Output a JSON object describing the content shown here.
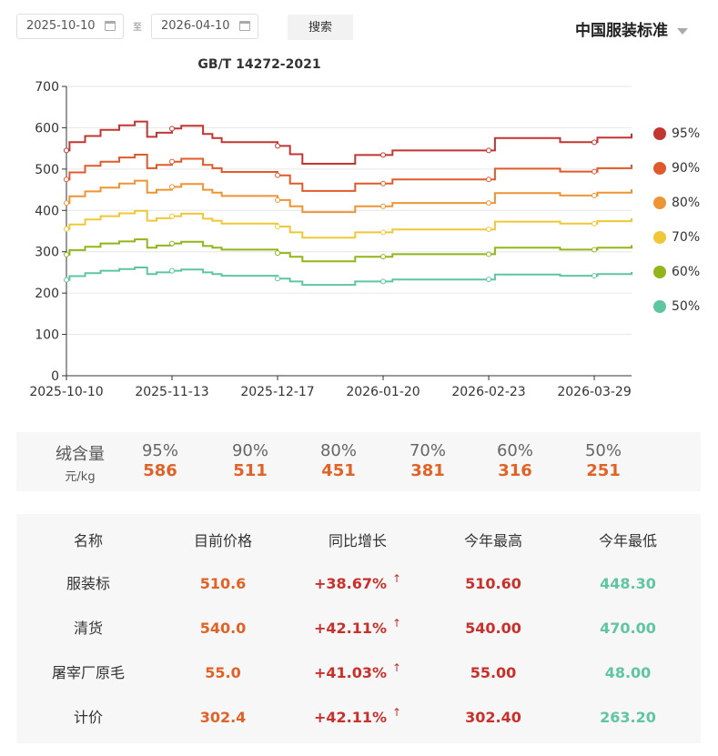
{
  "filters": {
    "start_date": "2025-10-10",
    "separator": "至",
    "end_date": "2026-04-10",
    "search_label": "搜索",
    "standard": "中国服装标准"
  },
  "chart_data": {
    "type": "line",
    "title": "GB/T 14272-2021",
    "xlabel": "",
    "ylabel": "",
    "ylim": [
      0,
      700
    ],
    "yticks": [
      0,
      100,
      200,
      300,
      400,
      500,
      600,
      700
    ],
    "xticks": [
      "2025-10-10",
      "2025-11-13",
      "2025-12-17",
      "2026-01-20",
      "2026-02-23",
      "2026-03-29"
    ],
    "x_range": [
      "2025-10-10",
      "2026-04-10"
    ],
    "step": true,
    "grid": true,
    "legend_position": "right",
    "series": [
      {
        "name": "95%",
        "color": "#c23531",
        "points": [
          [
            "2025-10-10",
            545
          ],
          [
            "2025-10-11",
            565
          ],
          [
            "2025-10-16",
            580
          ],
          [
            "2025-10-21",
            595
          ],
          [
            "2025-10-27",
            606
          ],
          [
            "2025-11-01",
            615
          ],
          [
            "2025-11-05",
            578
          ],
          [
            "2025-11-08",
            588
          ],
          [
            "2025-11-13",
            598
          ],
          [
            "2025-11-16",
            605
          ],
          [
            "2025-11-23",
            585
          ],
          [
            "2025-11-26",
            575
          ],
          [
            "2025-11-29",
            565
          ],
          [
            "2025-12-17",
            556
          ],
          [
            "2025-12-21",
            536
          ],
          [
            "2025-12-25",
            513
          ],
          [
            "2026-01-11",
            534
          ],
          [
            "2026-01-23",
            545
          ],
          [
            "2026-02-25",
            575
          ],
          [
            "2026-03-18",
            565
          ],
          [
            "2026-03-30",
            576
          ],
          [
            "2026-04-10",
            586
          ]
        ]
      },
      {
        "name": "90%",
        "color": "#e05a2b",
        "points": [
          [
            "2025-10-10",
            475
          ],
          [
            "2025-10-11",
            492
          ],
          [
            "2025-10-16",
            508
          ],
          [
            "2025-10-21",
            518
          ],
          [
            "2025-10-27",
            528
          ],
          [
            "2025-11-01",
            535
          ],
          [
            "2025-11-05",
            502
          ],
          [
            "2025-11-08",
            510
          ],
          [
            "2025-11-13",
            518
          ],
          [
            "2025-11-16",
            525
          ],
          [
            "2025-11-23",
            510
          ],
          [
            "2025-11-26",
            502
          ],
          [
            "2025-11-29",
            493
          ],
          [
            "2025-12-17",
            485
          ],
          [
            "2025-12-21",
            465
          ],
          [
            "2025-12-25",
            447
          ],
          [
            "2026-01-11",
            465
          ],
          [
            "2026-01-23",
            475
          ],
          [
            "2026-02-25",
            501
          ],
          [
            "2026-03-18",
            494
          ],
          [
            "2026-03-30",
            502
          ],
          [
            "2026-04-10",
            511
          ]
        ]
      },
      {
        "name": "80%",
        "color": "#ed9434",
        "points": [
          [
            "2025-10-10",
            418
          ],
          [
            "2025-10-11",
            434
          ],
          [
            "2025-10-16",
            446
          ],
          [
            "2025-10-21",
            455
          ],
          [
            "2025-10-27",
            465
          ],
          [
            "2025-11-01",
            472
          ],
          [
            "2025-11-05",
            443
          ],
          [
            "2025-11-08",
            450
          ],
          [
            "2025-11-13",
            457
          ],
          [
            "2025-11-16",
            464
          ],
          [
            "2025-11-23",
            450
          ],
          [
            "2025-11-26",
            443
          ],
          [
            "2025-11-29",
            435
          ],
          [
            "2025-12-17",
            425
          ],
          [
            "2025-12-21",
            410
          ],
          [
            "2025-12-25",
            396
          ],
          [
            "2026-01-11",
            410
          ],
          [
            "2026-01-23",
            418
          ],
          [
            "2026-02-25",
            442
          ],
          [
            "2026-03-18",
            436
          ],
          [
            "2026-03-30",
            443
          ],
          [
            "2026-04-10",
            451
          ]
        ]
      },
      {
        "name": "70%",
        "color": "#efc837",
        "points": [
          [
            "2025-10-10",
            355
          ],
          [
            "2025-10-11",
            366
          ],
          [
            "2025-10-16",
            378
          ],
          [
            "2025-10-21",
            386
          ],
          [
            "2025-10-27",
            393
          ],
          [
            "2025-11-01",
            399
          ],
          [
            "2025-11-05",
            375
          ],
          [
            "2025-11-08",
            381
          ],
          [
            "2025-11-13",
            386
          ],
          [
            "2025-11-16",
            392
          ],
          [
            "2025-11-23",
            380
          ],
          [
            "2025-11-26",
            375
          ],
          [
            "2025-11-29",
            368
          ],
          [
            "2025-12-17",
            361
          ],
          [
            "2025-12-21",
            347
          ],
          [
            "2025-12-25",
            334
          ],
          [
            "2026-01-11",
            347
          ],
          [
            "2026-01-23",
            354
          ],
          [
            "2026-02-25",
            373
          ],
          [
            "2026-03-18",
            368
          ],
          [
            "2026-03-30",
            374
          ],
          [
            "2026-04-10",
            381
          ]
        ]
      },
      {
        "name": "60%",
        "color": "#91b51a",
        "points": [
          [
            "2025-10-10",
            293
          ],
          [
            "2025-10-11",
            304
          ],
          [
            "2025-10-16",
            312
          ],
          [
            "2025-10-21",
            320
          ],
          [
            "2025-10-27",
            325
          ],
          [
            "2025-11-01",
            330
          ],
          [
            "2025-11-05",
            310
          ],
          [
            "2025-11-08",
            315
          ],
          [
            "2025-11-13",
            320
          ],
          [
            "2025-11-16",
            324
          ],
          [
            "2025-11-23",
            314
          ],
          [
            "2025-11-26",
            310
          ],
          [
            "2025-11-29",
            305
          ],
          [
            "2025-12-17",
            297
          ],
          [
            "2025-12-21",
            288
          ],
          [
            "2025-12-25",
            277
          ],
          [
            "2026-01-11",
            288
          ],
          [
            "2026-01-23",
            294
          ],
          [
            "2026-02-25",
            310
          ],
          [
            "2026-03-18",
            305
          ],
          [
            "2026-03-30",
            310
          ],
          [
            "2026-04-10",
            316
          ]
        ]
      },
      {
        "name": "50%",
        "color": "#5fc6a0",
        "points": [
          [
            "2025-10-10",
            232
          ],
          [
            "2025-10-11",
            241
          ],
          [
            "2025-10-16",
            248
          ],
          [
            "2025-10-21",
            254
          ],
          [
            "2025-10-27",
            258
          ],
          [
            "2025-11-01",
            262
          ],
          [
            "2025-11-05",
            246
          ],
          [
            "2025-11-08",
            250
          ],
          [
            "2025-11-13",
            254
          ],
          [
            "2025-11-16",
            257
          ],
          [
            "2025-11-23",
            250
          ],
          [
            "2025-11-26",
            246
          ],
          [
            "2025-11-29",
            242
          ],
          [
            "2025-12-17",
            235
          ],
          [
            "2025-12-21",
            228
          ],
          [
            "2025-12-25",
            220
          ],
          [
            "2026-01-11",
            228
          ],
          [
            "2026-01-23",
            233
          ],
          [
            "2026-02-25",
            245
          ],
          [
            "2026-03-18",
            242
          ],
          [
            "2026-03-30",
            246
          ],
          [
            "2026-04-10",
            251
          ]
        ]
      }
    ],
    "markers": [
      "2025-10-10",
      "2025-11-13",
      "2025-12-17",
      "2026-01-20",
      "2026-02-23",
      "2026-03-29"
    ]
  },
  "summary": {
    "header_main": "绒含量",
    "header_unit": "元/kg",
    "items": [
      {
        "pct": "95%",
        "val": "586"
      },
      {
        "pct": "90%",
        "val": "511"
      },
      {
        "pct": "80%",
        "val": "451"
      },
      {
        "pct": "70%",
        "val": "381"
      },
      {
        "pct": "60%",
        "val": "316"
      },
      {
        "pct": "50%",
        "val": "251"
      }
    ]
  },
  "table": {
    "headers": [
      "名称",
      "目前价格",
      "同比增长",
      "今年最高",
      "今年最低"
    ],
    "arrow": "↑",
    "rows": [
      {
        "name": "服装标",
        "current": "510.6",
        "change": "+38.67%",
        "high": "510.60",
        "low": "448.30"
      },
      {
        "name": "清货",
        "current": "540.0",
        "change": "+42.11%",
        "high": "540.00",
        "low": "470.00"
      },
      {
        "name": "屠宰厂原毛",
        "current": "55.0",
        "change": "+41.03%",
        "high": "55.00",
        "low": "48.00"
      },
      {
        "name": "计价",
        "current": "302.4",
        "change": "+42.11%",
        "high": "302.40",
        "low": "263.20"
      }
    ]
  }
}
